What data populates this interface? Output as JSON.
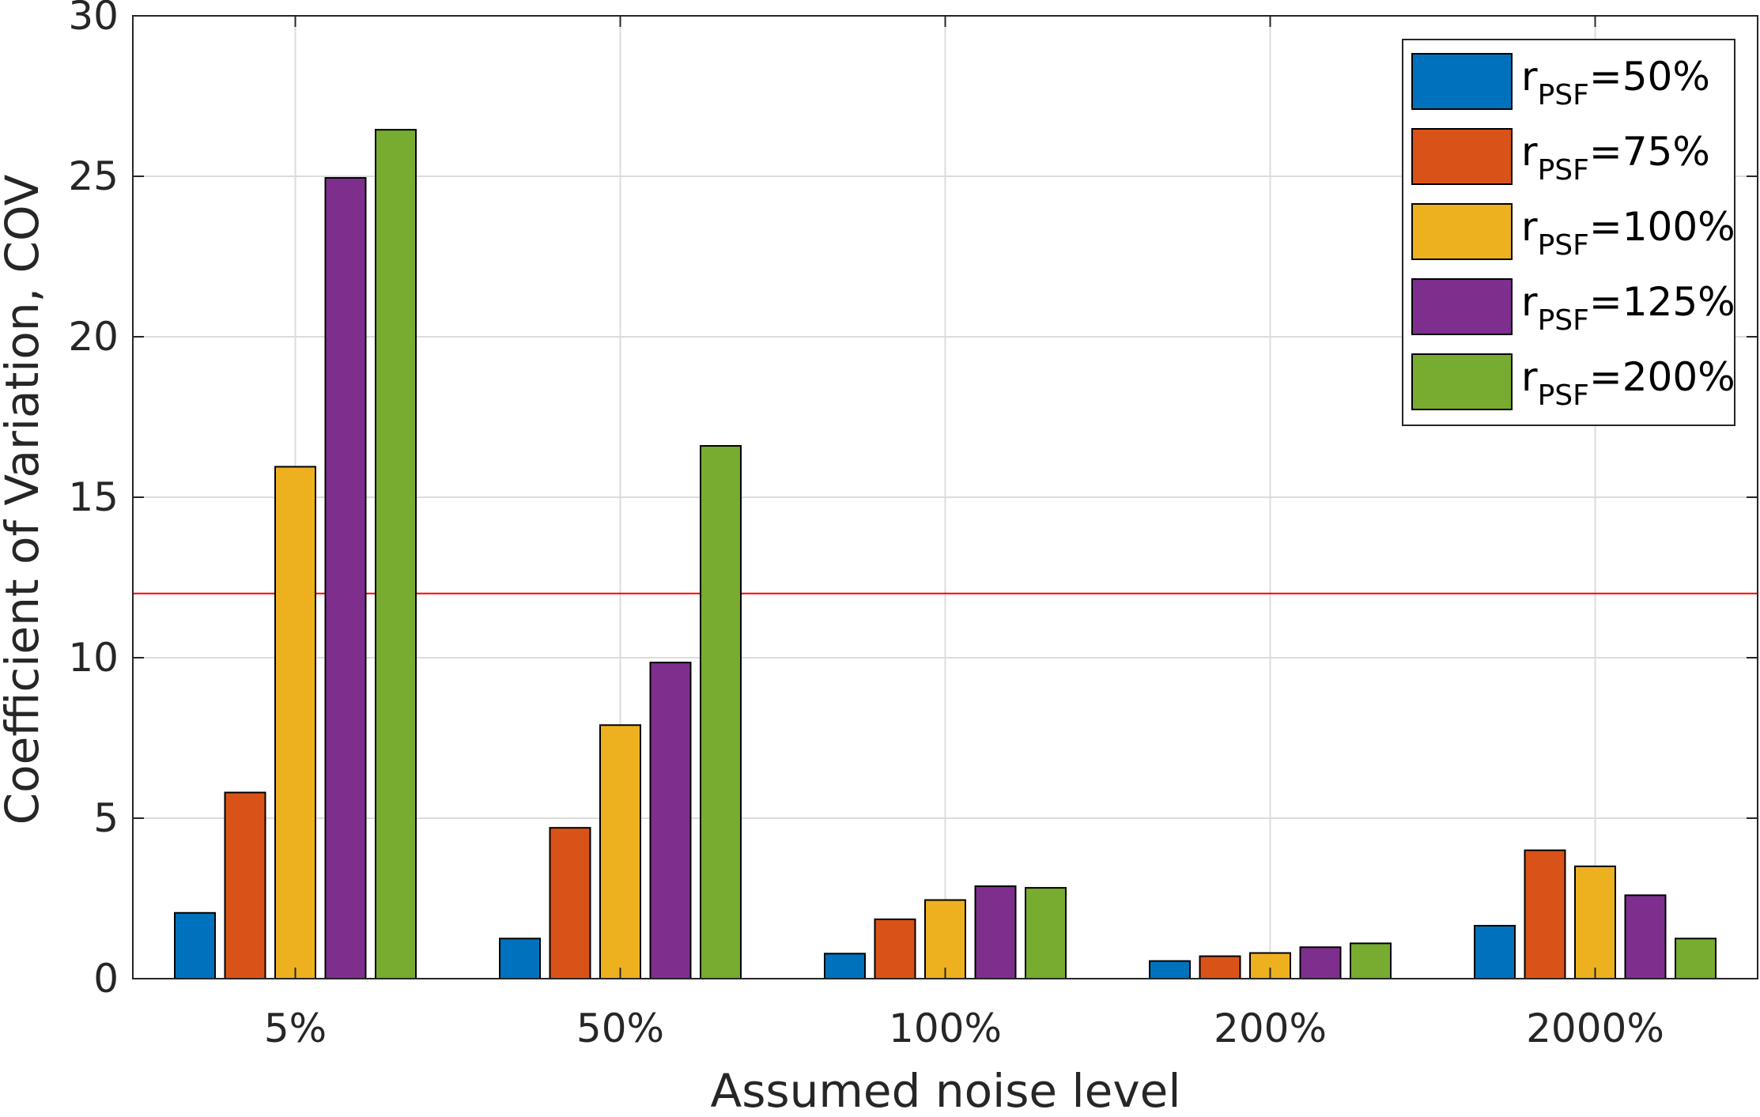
{
  "chart_data": {
    "type": "bar",
    "xlabel": "Assumed noise level",
    "ylabel": "Coefficient of Variation, COV",
    "categories": [
      "5%",
      "50%",
      "100%",
      "200%",
      "2000%"
    ],
    "ylim": [
      0,
      30
    ],
    "yticks": [
      0,
      5,
      10,
      15,
      20,
      25,
      30
    ],
    "grid": true,
    "legend_position": "top-right",
    "reference_line": {
      "y": 12,
      "color": "#ff0000"
    },
    "series": [
      {
        "name_main": "r",
        "name_sub": "PSF",
        "name_suffix": "=50%",
        "color": "#0072BD",
        "values": [
          2.05,
          1.25,
          0.78,
          0.55,
          1.65
        ]
      },
      {
        "name_main": "r",
        "name_sub": "PSF",
        "name_suffix": "=75%",
        "color": "#D95319",
        "values": [
          5.8,
          4.7,
          1.85,
          0.7,
          4.0
        ]
      },
      {
        "name_main": "r",
        "name_sub": "PSF",
        "name_suffix": "=100%",
        "color": "#EDB120",
        "values": [
          15.95,
          7.9,
          2.45,
          0.8,
          3.5
        ]
      },
      {
        "name_main": "r",
        "name_sub": "PSF",
        "name_suffix": "=125%",
        "color": "#7E2F8E",
        "values": [
          24.95,
          9.85,
          2.88,
          0.98,
          2.6
        ]
      },
      {
        "name_main": "r",
        "name_sub": "PSF",
        "name_suffix": "=200%",
        "color": "#77AC30",
        "values": [
          26.45,
          16.6,
          2.83,
          1.1,
          1.25
        ]
      }
    ]
  }
}
